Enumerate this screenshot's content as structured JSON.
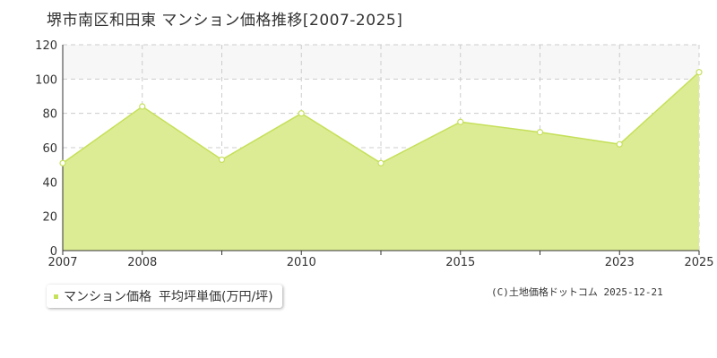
{
  "title": "堺市南区和田東 マンション価格推移[2007-2025]",
  "legend": {
    "series_label": "マンション価格",
    "unit_label": "平均坪単価(万円/坪)"
  },
  "source": "(C)土地価格ドットコム 2025-12-21",
  "colors": {
    "fill": "#dcec94",
    "line": "#c5e05a",
    "marker_fill": "#ffffff",
    "marker_stroke": "#c5e05a",
    "grid": "#cccccc",
    "highlight_band": "#f7f7f7",
    "legend_marker": "#c5e05a"
  },
  "chart_data": {
    "type": "area",
    "title": "堺市南区和田東 マンション価格推移[2007-2025]",
    "xlabel": "",
    "ylabel": "",
    "ylim": [
      0,
      120
    ],
    "y_ticks": [
      0,
      20,
      40,
      60,
      80,
      100,
      120
    ],
    "x_tick_labels": [
      "2007",
      "2008",
      "2010",
      "2015",
      "2023",
      "2025"
    ],
    "grid": true,
    "legend_position": "bottom-left",
    "x": [
      "2007",
      "2008",
      "",
      "2010",
      "",
      "2015",
      "",
      "2023",
      "2025"
    ],
    "series": [
      {
        "name": "マンション価格",
        "values": [
          51,
          84,
          53,
          80,
          51,
          75,
          69,
          62,
          104
        ]
      }
    ]
  }
}
